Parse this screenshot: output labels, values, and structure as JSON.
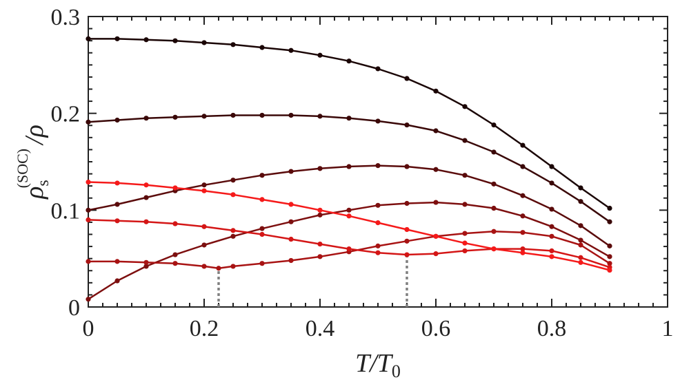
{
  "chart_data": {
    "type": "line",
    "xlabel": "T/T0",
    "xlabel_main": "T/T",
    "xlabel_sub": "0",
    "ylabel_rho": "ρ",
    "ylabel_sub": "s",
    "ylabel_sup": "(SOC)",
    "ylabel_tail": "/ρ",
    "xlim": [
      0,
      1
    ],
    "ylim": [
      0,
      0.3
    ],
    "xticks": [
      0,
      0.2,
      0.4,
      0.6,
      0.8,
      1
    ],
    "xtick_labels": [
      "0",
      "0.2",
      "0.4",
      "0.6",
      "0.8",
      "1"
    ],
    "yticks": [
      0,
      0.1,
      0.2,
      0.3
    ],
    "ytick_labels": [
      "0",
      "0.1",
      "0.2",
      "0.3"
    ],
    "grid": false,
    "markers": true,
    "series": [
      {
        "color": "#1a0505",
        "x": [
          0,
          0.05,
          0.1,
          0.15,
          0.2,
          0.25,
          0.3,
          0.35,
          0.4,
          0.45,
          0.5,
          0.55,
          0.6,
          0.65,
          0.7,
          0.75,
          0.8,
          0.85,
          0.9
        ],
        "values": [
          0.277,
          0.277,
          0.276,
          0.275,
          0.273,
          0.271,
          0.268,
          0.265,
          0.26,
          0.254,
          0.246,
          0.236,
          0.223,
          0.207,
          0.188,
          0.167,
          0.145,
          0.123,
          0.102
        ]
      },
      {
        "color": "#3a0808",
        "x": [
          0,
          0.05,
          0.1,
          0.15,
          0.2,
          0.25,
          0.3,
          0.35,
          0.4,
          0.45,
          0.5,
          0.55,
          0.6,
          0.65,
          0.7,
          0.75,
          0.8,
          0.85,
          0.9
        ],
        "values": [
          0.191,
          0.193,
          0.195,
          0.196,
          0.197,
          0.198,
          0.198,
          0.198,
          0.197,
          0.195,
          0.192,
          0.188,
          0.182,
          0.172,
          0.16,
          0.145,
          0.128,
          0.109,
          0.088
        ]
      },
      {
        "color": "#5a0b0b",
        "x": [
          0,
          0.05,
          0.1,
          0.15,
          0.2,
          0.25,
          0.3,
          0.35,
          0.4,
          0.45,
          0.5,
          0.55,
          0.6,
          0.65,
          0.7,
          0.75,
          0.8,
          0.85,
          0.9
        ],
        "values": [
          0.1,
          0.106,
          0.113,
          0.12,
          0.126,
          0.131,
          0.136,
          0.14,
          0.143,
          0.145,
          0.146,
          0.145,
          0.142,
          0.136,
          0.127,
          0.115,
          0.101,
          0.084,
          0.063
        ]
      },
      {
        "color": "#7d0f0f",
        "x": [
          0,
          0.05,
          0.1,
          0.15,
          0.2,
          0.25,
          0.3,
          0.35,
          0.4,
          0.45,
          0.5,
          0.55,
          0.6,
          0.65,
          0.7,
          0.75,
          0.8,
          0.85,
          0.9
        ],
        "values": [
          0.008,
          0.027,
          0.042,
          0.054,
          0.064,
          0.073,
          0.081,
          0.088,
          0.095,
          0.1,
          0.105,
          0.107,
          0.108,
          0.106,
          0.102,
          0.094,
          0.083,
          0.069,
          0.052
        ]
      },
      {
        "color": "#a81313",
        "x": [
          0,
          0.05,
          0.1,
          0.15,
          0.2,
          0.225,
          0.25,
          0.3,
          0.35,
          0.4,
          0.45,
          0.5,
          0.55,
          0.6,
          0.65,
          0.7,
          0.75,
          0.8,
          0.85,
          0.9
        ],
        "values": [
          0.047,
          0.047,
          0.046,
          0.045,
          0.042,
          0.04,
          0.042,
          0.045,
          0.048,
          0.052,
          0.057,
          0.063,
          0.068,
          0.073,
          0.076,
          0.078,
          0.077,
          0.073,
          0.064,
          0.045
        ]
      },
      {
        "color": "#d41616",
        "x": [
          0,
          0.05,
          0.1,
          0.15,
          0.2,
          0.25,
          0.3,
          0.35,
          0.4,
          0.45,
          0.5,
          0.55,
          0.6,
          0.65,
          0.7,
          0.75,
          0.8,
          0.85,
          0.9
        ],
        "values": [
          0.09,
          0.089,
          0.088,
          0.086,
          0.083,
          0.079,
          0.075,
          0.07,
          0.065,
          0.06,
          0.056,
          0.054,
          0.055,
          0.058,
          0.06,
          0.06,
          0.058,
          0.051,
          0.041
        ]
      },
      {
        "color": "#f51a1a",
        "x": [
          0,
          0.05,
          0.1,
          0.15,
          0.2,
          0.25,
          0.3,
          0.35,
          0.4,
          0.45,
          0.5,
          0.55,
          0.6,
          0.65,
          0.7,
          0.75,
          0.8,
          0.85,
          0.9
        ],
        "values": [
          0.129,
          0.128,
          0.126,
          0.123,
          0.12,
          0.116,
          0.111,
          0.106,
          0.1,
          0.094,
          0.087,
          0.08,
          0.073,
          0.066,
          0.06,
          0.056,
          0.052,
          0.046,
          0.038
        ]
      }
    ],
    "annotations": [
      {
        "x": 0.225,
        "y_from": 0,
        "y_to": 0.04,
        "style": "dotted",
        "color": "#808080"
      },
      {
        "x": 0.55,
        "y_from": 0,
        "y_to": 0.054,
        "style": "dotted",
        "color": "#808080"
      }
    ]
  }
}
